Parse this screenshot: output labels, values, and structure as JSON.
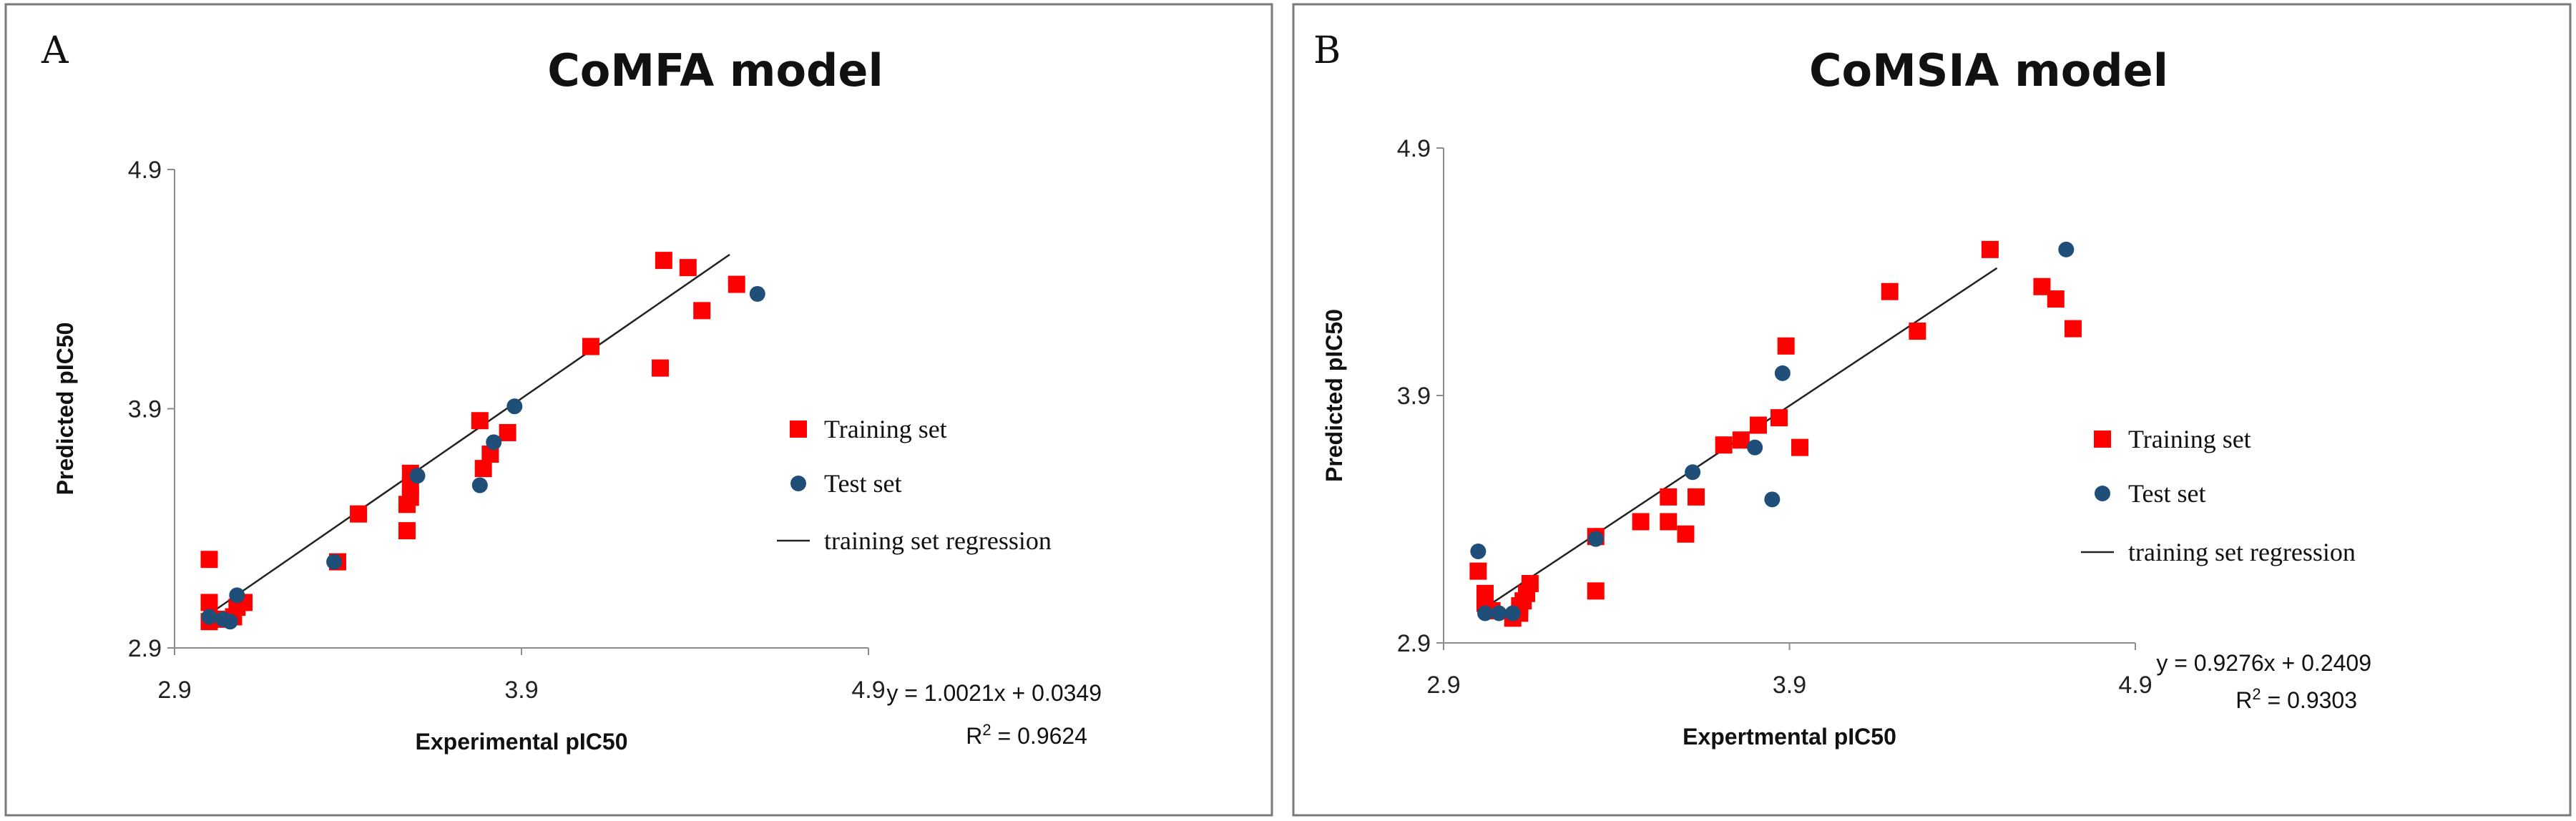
{
  "colors": {
    "training": "#ff0000",
    "test": "#1f4e79",
    "regression": "#222222"
  },
  "chart_data": [
    {
      "type": "scatter",
      "panel_label": "A",
      "title": "CoMFA model",
      "xlabel": "Experimental pIC50",
      "ylabel": "Predicted pIC50",
      "xlim": [
        2.9,
        4.9
      ],
      "ylim": [
        2.9,
        4.9
      ],
      "x_ticks": [
        "2.9",
        "3.9",
        "4.9"
      ],
      "y_ticks": [
        "2.9",
        "3.9",
        "4.9"
      ],
      "legend": [
        {
          "label": "Training set",
          "marker": "square"
        },
        {
          "label": "Test set",
          "marker": "circle"
        },
        {
          "label": "training set regression",
          "marker": "line"
        }
      ],
      "equation": "y = 1.0021x + 0.0349",
      "r2_label": "R",
      "r2_value": " = 0.9624",
      "regression_range": [
        3.0,
        4.5
      ],
      "series": [
        {
          "name": "Training set",
          "points": [
            [
              3.0,
              3.27
            ],
            [
              3.0,
              3.09
            ],
            [
              3.0,
              3.01
            ],
            [
              3.02,
              3.02
            ],
            [
              3.07,
              3.03
            ],
            [
              3.08,
              3.07
            ],
            [
              3.1,
              3.09
            ],
            [
              3.37,
              3.26
            ],
            [
              3.43,
              3.46
            ],
            [
              3.57,
              3.39
            ],
            [
              3.57,
              3.5
            ],
            [
              3.58,
              3.53
            ],
            [
              3.58,
              3.58
            ],
            [
              3.58,
              3.63
            ],
            [
              3.78,
              3.85
            ],
            [
              3.79,
              3.65
            ],
            [
              3.81,
              3.71
            ],
            [
              3.86,
              3.8
            ],
            [
              4.1,
              4.16
            ],
            [
              4.3,
              4.07
            ],
            [
              4.31,
              4.52
            ],
            [
              4.38,
              4.49
            ],
            [
              4.42,
              4.31
            ],
            [
              4.52,
              4.42
            ]
          ]
        },
        {
          "name": "Test set",
          "points": [
            [
              3.0,
              3.03
            ],
            [
              3.04,
              3.02
            ],
            [
              3.06,
              3.01
            ],
            [
              3.08,
              3.12
            ],
            [
              3.36,
              3.26
            ],
            [
              3.6,
              3.62
            ],
            [
              3.78,
              3.58
            ],
            [
              3.82,
              3.76
            ],
            [
              3.88,
              3.91
            ],
            [
              4.58,
              4.38
            ]
          ]
        }
      ]
    },
    {
      "type": "scatter",
      "panel_label": "B",
      "title": "CoMSIA model",
      "xlabel": "Expertmental pIC50",
      "ylabel": "Predicted pIC50",
      "xlim": [
        2.9,
        4.9
      ],
      "ylim": [
        2.9,
        4.9
      ],
      "x_ticks": [
        "2.9",
        "3.9",
        "4.9"
      ],
      "y_ticks": [
        "2.9",
        "3.9",
        "4.9"
      ],
      "legend": [
        {
          "label": "Training set",
          "marker": "square"
        },
        {
          "label": "Test set",
          "marker": "circle"
        },
        {
          "label": "training set regression",
          "marker": "line"
        }
      ],
      "equation": "y = 0.9276x + 0.2409",
      "r2_label": "R",
      "r2_value": " = 0.9303",
      "regression_range": [
        3.0,
        4.5
      ],
      "series": [
        {
          "name": "Training set",
          "points": [
            [
              3.0,
              3.19
            ],
            [
              3.02,
              3.1
            ],
            [
              3.02,
              3.06
            ],
            [
              3.04,
              3.03
            ],
            [
              3.1,
              3.0
            ],
            [
              3.12,
              3.02
            ],
            [
              3.12,
              3.05
            ],
            [
              3.13,
              3.07
            ],
            [
              3.14,
              3.1
            ],
            [
              3.15,
              3.14
            ],
            [
              3.34,
              3.11
            ],
            [
              3.34,
              3.33
            ],
            [
              3.47,
              3.39
            ],
            [
              3.55,
              3.39
            ],
            [
              3.55,
              3.49
            ],
            [
              3.6,
              3.34
            ],
            [
              3.63,
              3.49
            ],
            [
              3.71,
              3.7
            ],
            [
              3.76,
              3.72
            ],
            [
              3.81,
              3.78
            ],
            [
              3.87,
              3.81
            ],
            [
              3.89,
              4.1
            ],
            [
              3.93,
              3.69
            ],
            [
              4.19,
              4.32
            ],
            [
              4.27,
              4.16
            ],
            [
              4.48,
              4.49
            ],
            [
              4.63,
              4.34
            ],
            [
              4.67,
              4.29
            ],
            [
              4.72,
              4.17
            ]
          ]
        },
        {
          "name": "Test set",
          "points": [
            [
              3.0,
              3.27
            ],
            [
              3.02,
              3.02
            ],
            [
              3.06,
              3.02
            ],
            [
              3.1,
              3.02
            ],
            [
              3.34,
              3.32
            ],
            [
              3.62,
              3.59
            ],
            [
              3.8,
              3.69
            ],
            [
              3.85,
              3.48
            ],
            [
              3.88,
              3.99
            ],
            [
              4.7,
              4.49
            ]
          ]
        }
      ]
    }
  ]
}
